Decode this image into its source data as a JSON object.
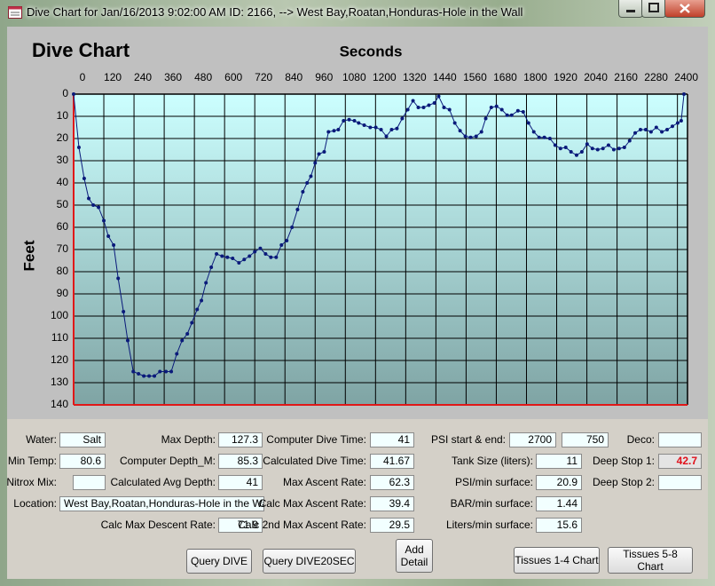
{
  "window": {
    "title": "Dive Chart for Jan/16/2013 9:02:00 AM  ID: 2166, --> West Bay,Roatan,Honduras-Hole in the Wall"
  },
  "chart_data": {
    "type": "line",
    "title": "Dive Chart",
    "x_label": "Seconds",
    "y_label": "Feet",
    "color": "#0a1a7a",
    "x": [
      0,
      21,
      42,
      60,
      78,
      99,
      120,
      138,
      159,
      177,
      198,
      215,
      237,
      258,
      279,
      300,
      321,
      343,
      367,
      388,
      410,
      431,
      452,
      470,
      491,
      508,
      526,
      547,
      568,
      590,
      611,
      632,
      657,
      678,
      699,
      720,
      742,
      763,
      784,
      805,
      826,
      847,
      868,
      890,
      911,
      928,
      943,
      960,
      975,
      996,
      1013,
      1035,
      1052,
      1073,
      1095,
      1116,
      1133,
      1155,
      1179,
      1201,
      1222,
      1243,
      1264,
      1285,
      1306,
      1328,
      1349,
      1370,
      1391,
      1412,
      1434,
      1451,
      1472,
      1494,
      1515,
      1536,
      1557,
      1578,
      1600,
      1621,
      1638,
      1660,
      1681,
      1702,
      1723,
      1741,
      1766,
      1787,
      1808,
      1829,
      1850,
      1871,
      1893,
      1914,
      1935,
      1956,
      1977,
      1999,
      2020,
      2041,
      2062,
      2083,
      2104,
      2126,
      2147,
      2168,
      2189,
      2210,
      2232,
      2253,
      2274,
      2295,
      2316,
      2338,
      2359,
      2380,
      2401,
      2415,
      2426
    ],
    "values": [
      0,
      24,
      38,
      47,
      50,
      51,
      57,
      64,
      68,
      83,
      98,
      111,
      125,
      126,
      127,
      127,
      127,
      125,
      125,
      125,
      117,
      111,
      108,
      103,
      97,
      93,
      85,
      78,
      72,
      73,
      73.5,
      74,
      76,
      74.5,
      73,
      71,
      69.5,
      72,
      73.5,
      73.5,
      68,
      66,
      60,
      52,
      44,
      40,
      37,
      31,
      27,
      26,
      17,
      16.5,
      16,
      12,
      11.5,
      12,
      13,
      14,
      15,
      15,
      16,
      19,
      16,
      15.5,
      11,
      7,
      3,
      6,
      6,
      5,
      4,
      1,
      6,
      7,
      13,
      16.5,
      19,
      19.5,
      19,
      17,
      11,
      6,
      5.5,
      7,
      9.5,
      9.5,
      7.5,
      8,
      13,
      17,
      19.5,
      19.5,
      20,
      23,
      24.5,
      24,
      26,
      27.5,
      26,
      22.5,
      24.5,
      25,
      24.5,
      23,
      25,
      24.5,
      24,
      21,
      17.5,
      16,
      16,
      17,
      15,
      17,
      16,
      14.5,
      13,
      12,
      0
    ],
    "xlim": [
      0,
      2440
    ],
    "xticks": [
      0,
      120,
      240,
      360,
      480,
      600,
      720,
      840,
      960,
      1080,
      1200,
      1320,
      1440,
      1560,
      1680,
      1800,
      1920,
      2040,
      2160,
      2280,
      2400
    ],
    "ylim": [
      0,
      140
    ],
    "yticks": [
      0,
      10,
      20,
      30,
      40,
      50,
      60,
      70,
      80,
      90,
      100,
      110,
      120,
      130,
      140
    ],
    "y_inverted": true,
    "grid": true
  },
  "fields": [
    {
      "label": "Water:",
      "value": "Salt"
    },
    {
      "label": "Min Temp:",
      "value": "80.6"
    },
    {
      "label": "Nitrox Mix:"
    },
    {
      "label": "Location:",
      "value": "West Bay,Roatan,Honduras-Hole in the Wall"
    },
    {
      "label": "Max Depth:",
      "value": "127.3"
    },
    {
      "label": "Computer Depth_M:",
      "value": "85.3"
    },
    {
      "label": "Calculated Avg Depth:",
      "value": "41"
    },
    {
      "label": "Calc Max Descent Rate:",
      "value": "71.9"
    },
    {
      "label": "Computer Dive Time:",
      "value": "41"
    },
    {
      "label": "Calculated Dive Time:",
      "value": "41.67"
    },
    {
      "label": "Max Ascent Rate:",
      "value": "62.3"
    },
    {
      "label": "Calc Max Ascent Rate:",
      "value": "39.4"
    },
    {
      "label": "Calc 2nd Max Ascent Rate:",
      "value": "29.5"
    },
    {
      "label": "PSI start & end:",
      "values": [
        "2700",
        "750"
      ]
    },
    {
      "label": "Tank Size (liters):",
      "value": "11"
    },
    {
      "label": "PSI/min surface:",
      "value": "20.9"
    },
    {
      "label": "BAR/min surface:",
      "value": "1.44"
    },
    {
      "label": "Liters/min surface:",
      "value": "15.6"
    },
    {
      "label": "Deco:"
    },
    {
      "label": "Deep Stop 1:",
      "value": "42.7"
    },
    {
      "label": "Deep Stop 2:"
    }
  ],
  "buttons": [
    "Query DIVE",
    "Query DIVE20SEC",
    "Add Detail",
    "Tissues 1-4 Chart",
    "Tissues 5-8 Chart"
  ]
}
